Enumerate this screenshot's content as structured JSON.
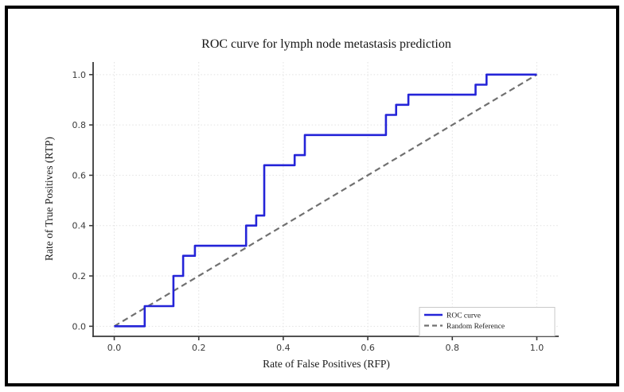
{
  "figure": {
    "background_color": "#ffffff",
    "outer_border_color": "#000000",
    "plot_background_color": "#ffffff",
    "gridline_color": "#e2e2e2",
    "spine_color": "#3a3a3a"
  },
  "chart_data": {
    "type": "line",
    "title": "ROC curve for lymph node metastasis prediction",
    "xlabel": "Rate of False Positives (RFP)",
    "ylabel": "Rate of True Positives (RTP)",
    "xlim": [
      -0.05,
      1.05
    ],
    "ylim": [
      -0.04,
      1.05
    ],
    "xticks": [
      0.0,
      0.2,
      0.4,
      0.6,
      0.8,
      1.0
    ],
    "xtick_labels": [
      "0.0",
      "0.2",
      "0.4",
      "0.6",
      "0.8",
      "1.0"
    ],
    "yticks": [
      0.0,
      0.2,
      0.4,
      0.6,
      0.8,
      1.0
    ],
    "ytick_labels": [
      "0.0",
      "0.2",
      "0.4",
      "0.6",
      "0.8",
      "1.0"
    ],
    "grid": true,
    "grid_style": "dotted",
    "legend_position": "lower right",
    "series": [
      {
        "name": "ROC curve",
        "line_style": "solid",
        "color": "#2424d8",
        "step": true,
        "points": [
          [
            0.0,
            0.0
          ],
          [
            0.072,
            0.0
          ],
          [
            0.072,
            0.08
          ],
          [
            0.14,
            0.08
          ],
          [
            0.14,
            0.2
          ],
          [
            0.163,
            0.2
          ],
          [
            0.163,
            0.28
          ],
          [
            0.191,
            0.28
          ],
          [
            0.191,
            0.32
          ],
          [
            0.312,
            0.32
          ],
          [
            0.312,
            0.4
          ],
          [
            0.336,
            0.4
          ],
          [
            0.336,
            0.44
          ],
          [
            0.355,
            0.44
          ],
          [
            0.355,
            0.64
          ],
          [
            0.427,
            0.64
          ],
          [
            0.427,
            0.68
          ],
          [
            0.451,
            0.68
          ],
          [
            0.451,
            0.76
          ],
          [
            0.643,
            0.76
          ],
          [
            0.643,
            0.84
          ],
          [
            0.667,
            0.84
          ],
          [
            0.667,
            0.88
          ],
          [
            0.696,
            0.88
          ],
          [
            0.696,
            0.92
          ],
          [
            0.855,
            0.92
          ],
          [
            0.855,
            0.96
          ],
          [
            0.881,
            0.96
          ],
          [
            0.881,
            1.0
          ],
          [
            1.0,
            1.0
          ]
        ]
      },
      {
        "name": "Random Reference",
        "line_style": "dashed",
        "color": "#707070",
        "step": false,
        "points": [
          [
            0.0,
            0.0
          ],
          [
            1.0,
            1.0
          ]
        ]
      }
    ]
  }
}
